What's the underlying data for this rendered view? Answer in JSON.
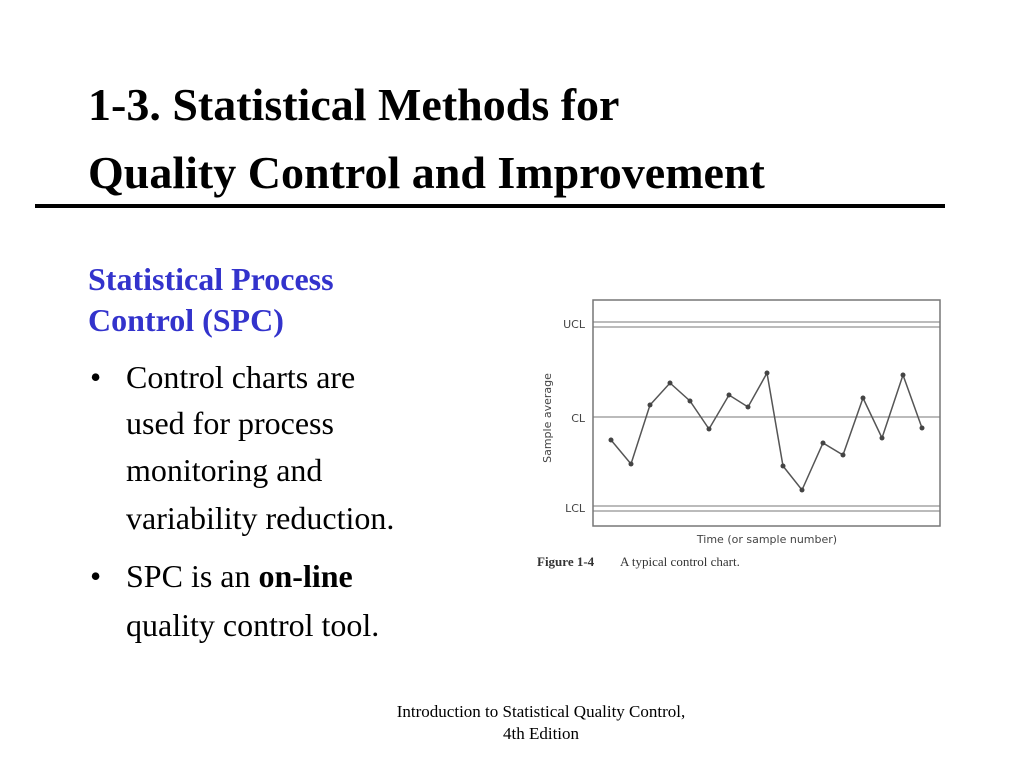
{
  "title": [
    "1-3. Statistical Methods for",
    "Quality Control and Improvement"
  ],
  "heading": [
    "Statistical Process",
    "Control (SPC)"
  ],
  "bullets": [
    [
      "Control charts are",
      "used for process",
      "monitoring and",
      "variability reduction."
    ],
    [
      "SPC is an",
      "on-line",
      "quality control tool."
    ]
  ],
  "figure": {
    "limits": [
      "UCL",
      "CL",
      "LCL"
    ],
    "y_label": "Sample average",
    "x_label": "Time (or sample number)",
    "caption_number": "Figure 1-4",
    "caption": "A typical control chart."
  },
  "footer": [
    "Introduction to Statistical Quality Control,",
    "4th Edition"
  ]
}
